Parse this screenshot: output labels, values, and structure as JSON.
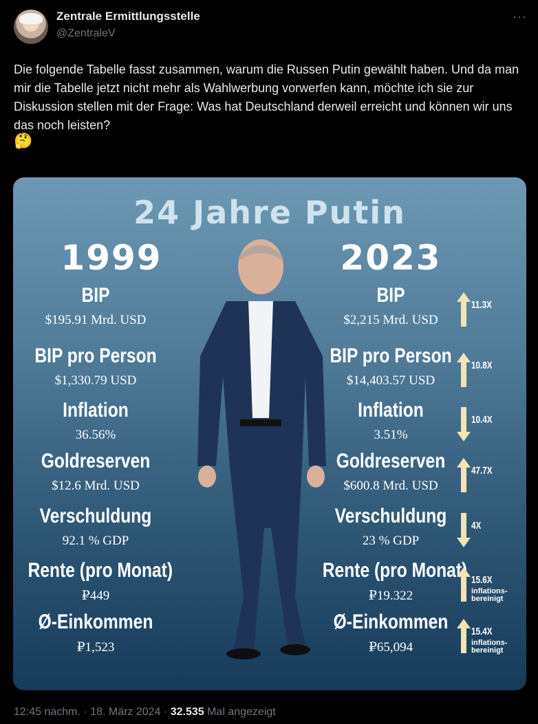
{
  "tweet": {
    "display_name": "Zentrale Ermittlungsstelle",
    "handle": "@ZentraleV",
    "more_label": "···",
    "text": "Die folgende Tabelle fasst zusammen, warum die Russen Putin gewählt haben. Und da man mir die Tabelle jetzt nicht mehr als Wahlwerbung vorwerfen kann, möchte ich sie zur Diskussion stellen mit der Frage: Was hat Deutschland derweil erreicht und können wir uns das noch leisten?",
    "emoji": "🤔",
    "time": "12:45 nachm.",
    "date": "18. März 2024",
    "views": "32.535",
    "views_label": "Mal angezeigt",
    "separator": "·"
  },
  "image": {
    "title": "24 Jahre Putin",
    "year_left": "1999",
    "year_right": "2023",
    "rows": [
      {
        "label": "BIP",
        "left": "$195.91 Mrd. USD",
        "right": "$2,215 Mrd. USD",
        "factor": "11.3X",
        "direction": "up",
        "note": ""
      },
      {
        "label": "BIP pro Person",
        "left": "$1,330.79 USD",
        "right": "$14,403.57 USD",
        "factor": "10.8X",
        "direction": "up",
        "note": ""
      },
      {
        "label": "Inflation",
        "left": "36.56%",
        "right": "3.51%",
        "factor": "10.4X",
        "direction": "down",
        "note": ""
      },
      {
        "label": "Goldreserven",
        "left": "$12.6 Mrd. USD",
        "right": "$600.8 Mrd. USD",
        "factor": "47.7X",
        "direction": "up",
        "note": ""
      },
      {
        "label": "Verschuldung",
        "left": "92.1 % GDP",
        "right": "23 % GDP",
        "factor": "4X",
        "direction": "down",
        "note": ""
      },
      {
        "label": "Rente (pro Monat)",
        "left": "₽449",
        "right": "₽19.322",
        "factor": "15.6X",
        "direction": "up",
        "note": "inflations-bereinigt"
      },
      {
        "label": "Ø-Einkommen",
        "left": "₽1,523",
        "right": "₽65,094",
        "factor": "15.4X",
        "direction": "up",
        "note": "inflations-bereinigt"
      }
    ],
    "colors": {
      "arrow": "#f4e3b4",
      "title": "#cfe3ef",
      "suit": "#1f3357"
    }
  }
}
